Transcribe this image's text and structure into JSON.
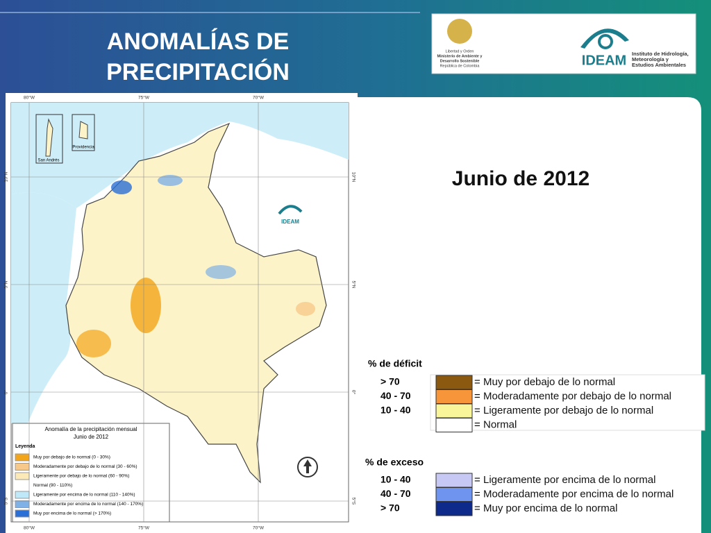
{
  "header": {
    "title_lines": [
      "ANOMALÍAS DE",
      "PRECIPITACIÓN"
    ]
  },
  "logos": {
    "government": [
      "Libertad y Orden",
      "Ministerio de Ambiente y",
      "Desarrollo Sostenible",
      "República de Colombia"
    ],
    "ideam": "IDEAM",
    "ideam_sub": [
      "Instituto de Hidrología,",
      "Meteorología y",
      "Estudios Ambientales"
    ]
  },
  "date": "Junio de 2012",
  "equals": "=",
  "deficit": {
    "heading": "% de déficit",
    "rows": [
      {
        "range": "> 70",
        "label": "Muy por debajo de lo normal",
        "color": "#8b5a10"
      },
      {
        "range": "40 -  70",
        "label": "Moderadamente por debajo de lo normal",
        "color": "#f7953a"
      },
      {
        "range": "10 -  40",
        "label": "Ligeramente por debajo de lo normal",
        "color": "#f8f59a"
      },
      {
        "label": "Normal",
        "color": "#ffffff"
      }
    ]
  },
  "excess": {
    "heading": "% de exceso",
    "rows": [
      {
        "range": "10 -  40",
        "label": "Ligeramente por encima de lo normal",
        "color": "#c8c8f4"
      },
      {
        "range": "40 -  70",
        "label": "Moderadamente por encima de lo normal",
        "color": "#6e94f0"
      },
      {
        "range": "> 70",
        "label": "Muy por encima de lo normal",
        "color": "#0e2a8a"
      }
    ]
  },
  "map": {
    "lon_labels": [
      "80°W",
      "75°W",
      "70°W"
    ],
    "lat_labels": [
      "10°N",
      "5°N",
      "0°",
      "5°S"
    ],
    "insets": [
      "San Andrés",
      "Providencia"
    ],
    "watermark": "IDEAM",
    "legend": {
      "title": "Anomalía de la precipitación mensual",
      "subtitle": "Junio de 2012",
      "heading": "Leyenda",
      "items": [
        {
          "label": "Muy por debajo de lo normal (0 - 30%)",
          "color": "#f2a51a"
        },
        {
          "label": "Moderadamente por debajo de lo normal (30 - 60%)",
          "color": "#f6c98a"
        },
        {
          "label": "Ligeramente por debajo de lo normal (60 - 90%)",
          "color": "#fbe9b8"
        },
        {
          "label": "Normal (90 - 110%)",
          "color": "#ffffff"
        },
        {
          "label": "Ligeramente por encima de lo normal (110 - 140%)",
          "color": "#bfe8f8"
        },
        {
          "label": "Moderadamente por encima de lo normal (140 - 170%)",
          "color": "#7fb0e6"
        },
        {
          "label": "Muy por encima de lo normal (> 170%)",
          "color": "#2a6fd6"
        }
      ]
    }
  }
}
